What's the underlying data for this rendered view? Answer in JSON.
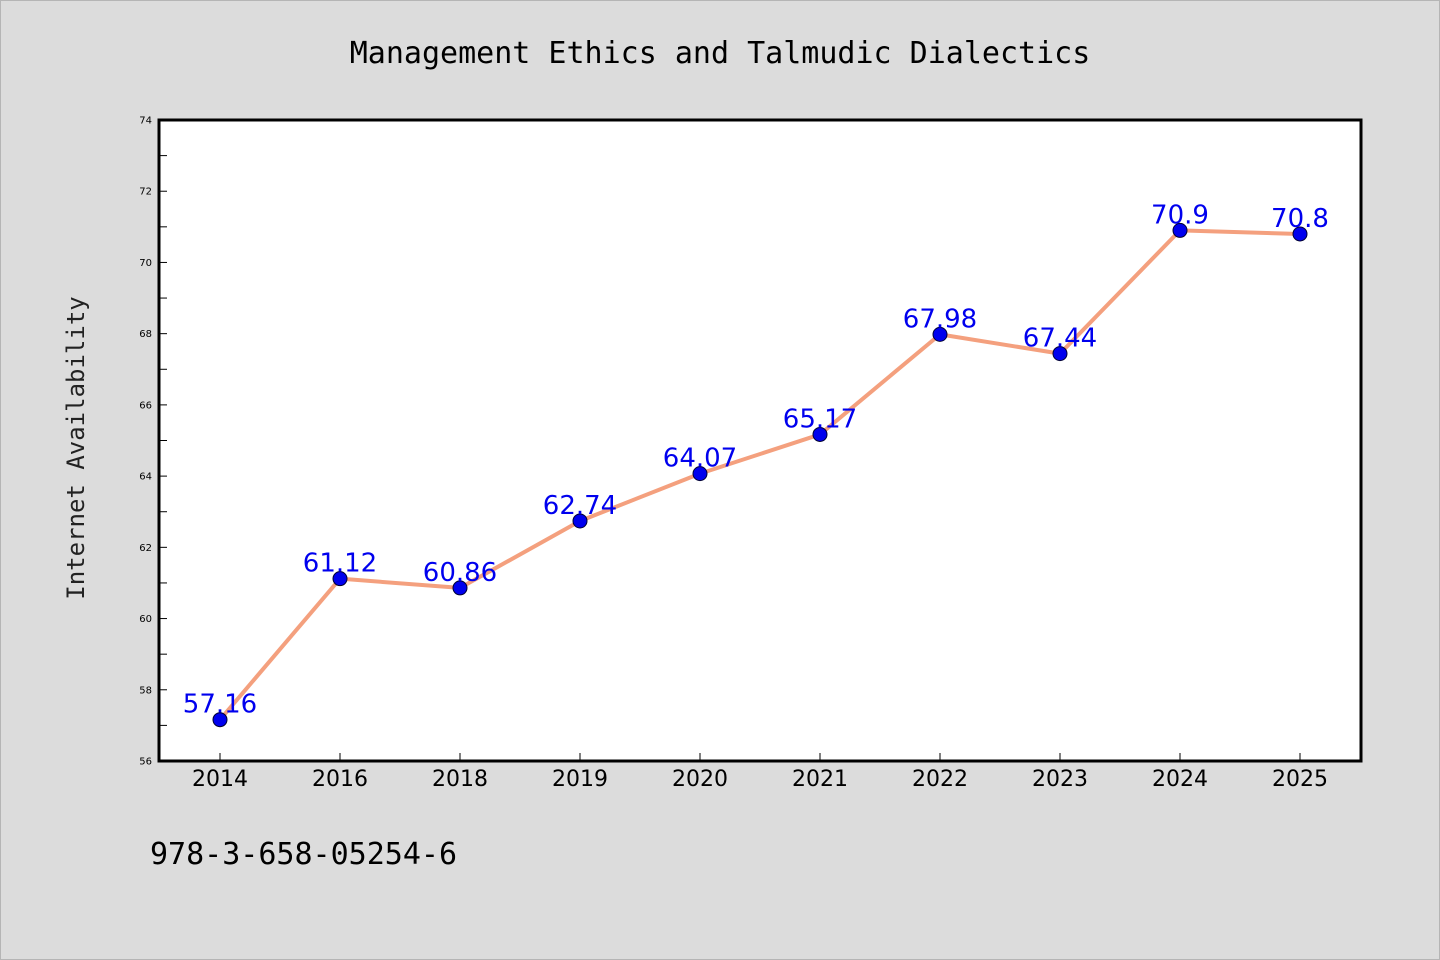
{
  "chart_data": {
    "type": "line",
    "title": "Management Ethics and Talmudic Dialectics",
    "xlabel": "",
    "ylabel": "Internet Availability",
    "categories": [
      "2014",
      "2016",
      "2018",
      "2019",
      "2020",
      "2021",
      "2022",
      "2023",
      "2024",
      "2025"
    ],
    "series": [
      {
        "values": [
          57.16,
          61.12,
          60.86,
          62.74,
          64.07,
          65.17,
          67.98,
          67.44,
          70.9,
          70.8
        ],
        "labels": [
          "57.16",
          "61.12",
          "60.86",
          "62.74",
          "64.07",
          "65.17",
          "67.98",
          "67.44",
          "70.9",
          "70.8"
        ],
        "line_color": "#f4a07e",
        "marker_color": "#0000ee",
        "label_color": "#0000ee"
      }
    ],
    "ylim": [
      56,
      74
    ],
    "yticks": [
      "56",
      "58",
      "60",
      "62",
      "64",
      "66",
      "68",
      "70",
      "72",
      "74"
    ],
    "grid": false,
    "legend": "none"
  },
  "footer": {
    "isbn": "978-3-658-05254-6"
  },
  "colors": {
    "background": "#dcdcdc",
    "plot_background": "#ffffff",
    "axis": "#000000"
  }
}
